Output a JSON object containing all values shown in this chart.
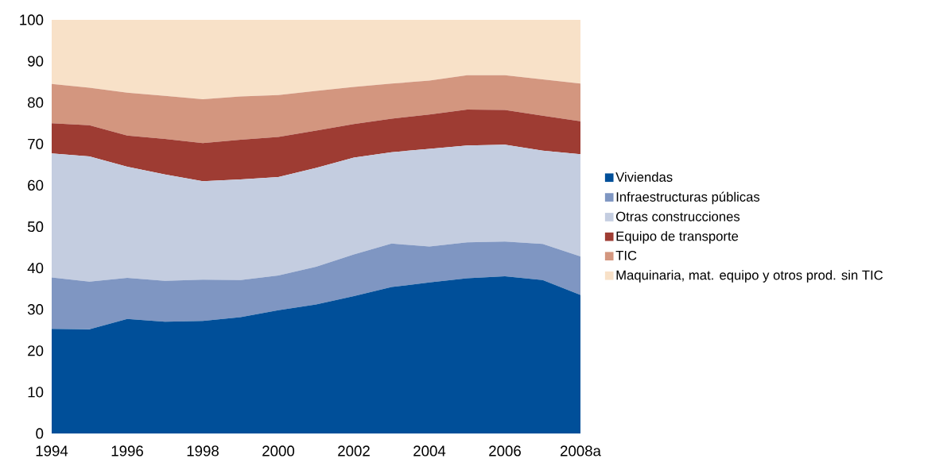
{
  "chart_data": {
    "type": "area",
    "stacked": true,
    "categories": [
      "1994",
      null,
      "1996",
      null,
      "1998",
      null,
      "2000",
      null,
      "2002",
      null,
      "2004",
      null,
      "2006",
      null,
      "2008a"
    ],
    "ylim": [
      0,
      100
    ],
    "yticks": [
      0,
      10,
      20,
      30,
      40,
      50,
      60,
      70,
      80,
      90,
      100
    ],
    "legend": "right",
    "grid": false,
    "series": [
      {
        "name": "Viviendas",
        "color": "#004f99",
        "values": [
          25.3,
          25.2,
          27.7,
          27.0,
          27.2,
          28.1,
          29.8,
          31.2,
          33.2,
          35.4,
          36.5,
          37.5,
          38.0,
          37.1,
          33.5
        ]
      },
      {
        "name": "Infraestructuras públicas",
        "color": "#7f96c2",
        "values": [
          12.4,
          11.5,
          9.9,
          9.9,
          10.0,
          9.0,
          8.4,
          9.1,
          10.1,
          10.5,
          8.7,
          8.7,
          8.4,
          8.7,
          9.3
        ]
      },
      {
        "name": "Otras construcciones",
        "color": "#c4cde0",
        "values": [
          30.0,
          30.3,
          26.9,
          25.7,
          23.8,
          24.3,
          23.8,
          23.9,
          23.4,
          22.1,
          23.6,
          23.4,
          23.4,
          22.6,
          24.7
        ]
      },
      {
        "name": "Equipo de transporte",
        "color": "#9e3c33",
        "values": [
          7.3,
          7.5,
          7.5,
          8.6,
          9.2,
          9.6,
          9.7,
          9.0,
          8.1,
          8.1,
          8.3,
          8.7,
          8.4,
          8.4,
          8.0
        ]
      },
      {
        "name": "TIC",
        "color": "#d3967f",
        "values": [
          9.5,
          9.1,
          10.4,
          10.4,
          10.6,
          10.5,
          10.1,
          9.6,
          9.0,
          8.5,
          8.2,
          8.3,
          8.4,
          8.8,
          9.1
        ]
      },
      {
        "name": "Maquinaria, mat. equipo y otros prod. sin TIC",
        "color": "#f8e1c8",
        "values": [
          15.5,
          16.4,
          17.6,
          18.4,
          19.2,
          18.5,
          18.2,
          17.2,
          16.2,
          15.4,
          14.7,
          13.4,
          13.4,
          14.4,
          15.4
        ]
      }
    ]
  }
}
